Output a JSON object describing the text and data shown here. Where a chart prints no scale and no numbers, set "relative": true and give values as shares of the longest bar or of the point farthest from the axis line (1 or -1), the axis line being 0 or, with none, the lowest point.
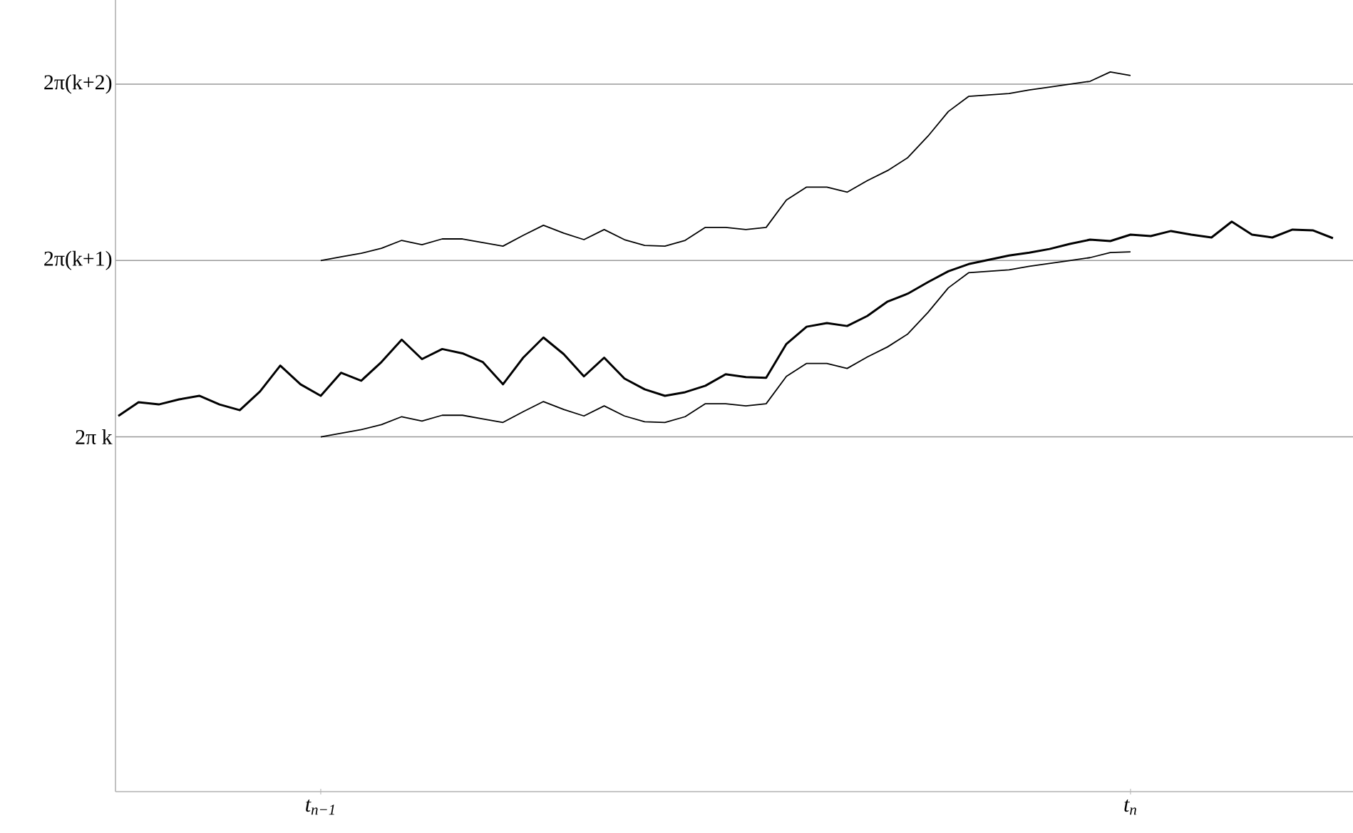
{
  "chart_data": {
    "type": "line",
    "relative": true,
    "categories": [
      null,
      null,
      null,
      null,
      null,
      null,
      null,
      null,
      null,
      null,
      "t$_{n−1}$",
      null,
      null,
      null,
      null,
      null,
      null,
      null,
      null,
      null,
      null,
      null,
      null,
      null,
      null,
      null,
      null,
      null,
      null,
      null,
      null,
      null,
      null,
      null,
      null,
      null,
      null,
      null,
      null,
      null,
      null,
      null,
      null,
      null,
      null,
      null,
      null,
      null,
      null,
      null,
      "t$_{n}$",
      null,
      null,
      null,
      null,
      null,
      null,
      null,
      null,
      null,
      null
    ],
    "ref_lines": [
      {
        "axis": "y",
        "value": 0.493,
        "label": "2π k"
      },
      {
        "axis": "y",
        "value": 0.738,
        "label": "2π(k+1)"
      },
      {
        "axis": "y",
        "value": 0.983,
        "label": "2π(k+2)"
      }
    ],
    "series": [
      {
        "color": "#000000",
        "values": [
          0.522,
          0.541,
          0.538,
          0.545,
          0.55,
          0.538,
          0.53,
          0.556,
          0.592,
          0.566,
          0.55,
          0.582,
          0.571,
          0.597,
          0.628,
          0.601,
          0.615,
          0.609,
          0.597,
          0.566,
          0.603,
          0.631,
          0.608,
          0.577,
          0.603,
          0.574,
          0.559,
          0.55,
          0.555,
          0.564,
          0.58,
          0.576,
          0.575,
          0.622,
          0.646,
          0.651,
          0.647,
          0.661,
          0.681,
          0.692,
          0.708,
          0.723,
          0.733,
          0.739,
          0.745,
          0.749,
          0.754,
          0.761,
          0.767,
          0.765,
          0.774,
          0.772,
          0.779,
          0.774,
          0.77,
          0.792,
          0.774,
          0.77,
          0.781,
          0.78,
          0.769
        ]
      },
      {
        "color": "#000000",
        "values": [
          null,
          null,
          null,
          null,
          null,
          null,
          null,
          null,
          null,
          null,
          0.493,
          0.498,
          0.503,
          0.51,
          0.521,
          0.515,
          0.523,
          0.523,
          0.518,
          0.513,
          0.528,
          0.542,
          0.531,
          0.522,
          0.536,
          0.522,
          0.514,
          0.513,
          0.521,
          0.539,
          0.539,
          0.536,
          0.539,
          0.577,
          0.595,
          0.595,
          0.588,
          0.604,
          0.618,
          0.636,
          0.666,
          0.7,
          0.721,
          0.723,
          0.725,
          0.73,
          0.734,
          0.738,
          0.742,
          0.749,
          0.75,
          null,
          null,
          null,
          null,
          null,
          null,
          null,
          null,
          null,
          null
        ]
      },
      {
        "color": "#000000",
        "values": [
          null,
          null,
          null,
          null,
          null,
          null,
          null,
          null,
          null,
          null,
          0.738,
          0.743,
          0.748,
          0.755,
          0.766,
          0.76,
          0.768,
          0.768,
          0.763,
          0.758,
          0.773,
          0.787,
          0.776,
          0.767,
          0.781,
          0.767,
          0.759,
          0.758,
          0.766,
          0.784,
          0.784,
          0.781,
          0.784,
          0.822,
          0.84,
          0.84,
          0.833,
          0.849,
          0.863,
          0.881,
          0.911,
          0.945,
          0.966,
          0.968,
          0.97,
          0.975,
          0.979,
          0.983,
          0.987,
          1.0,
          0.995,
          null,
          null,
          null,
          null,
          null,
          null,
          null,
          null,
          null,
          null
        ]
      }
    ]
  }
}
